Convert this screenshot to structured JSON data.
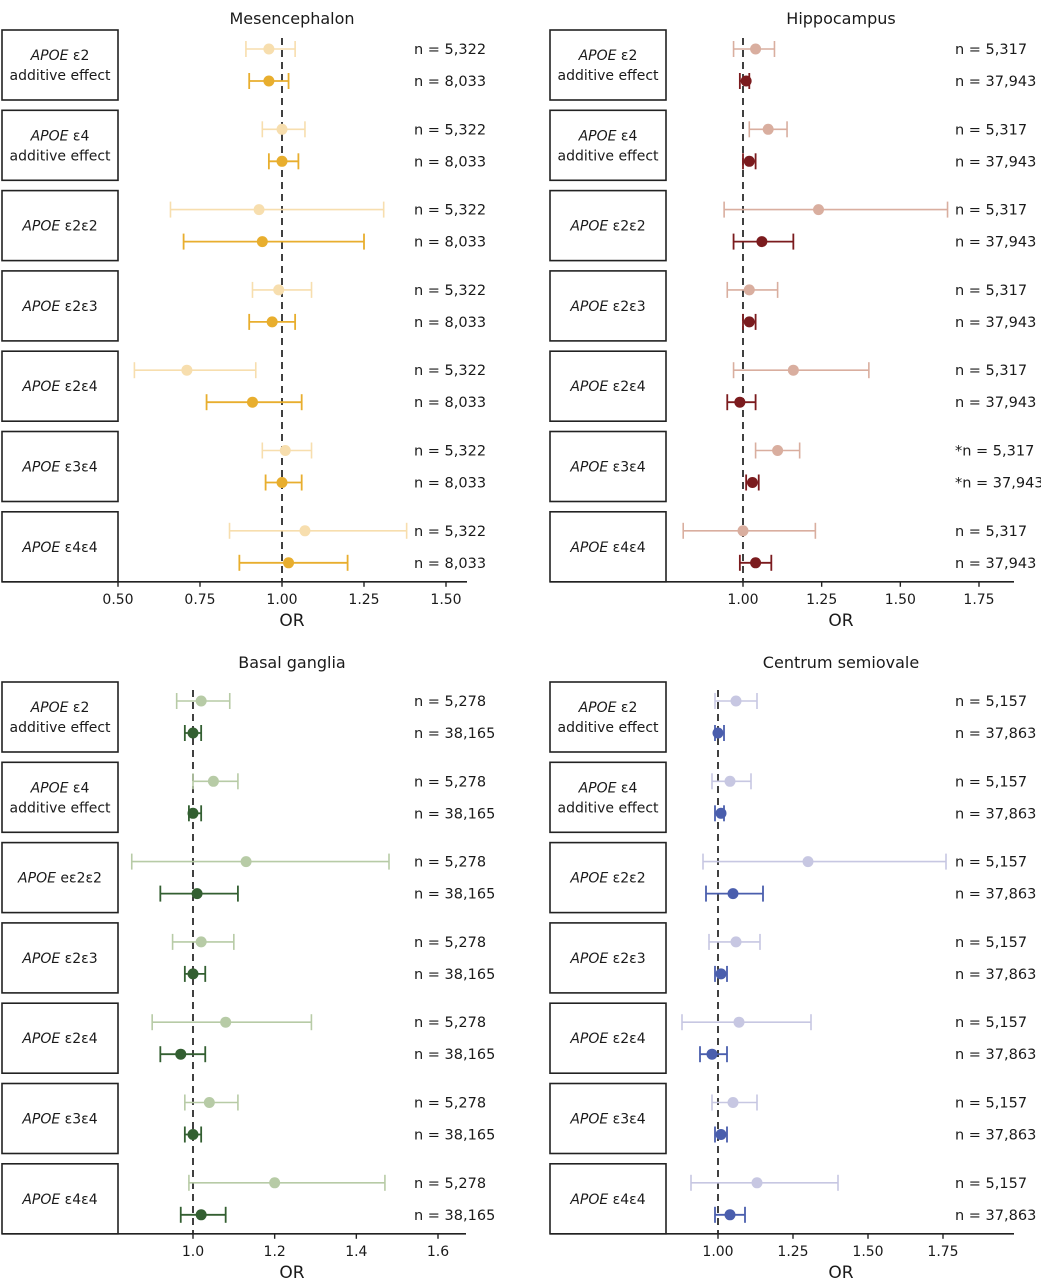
{
  "figure": {
    "xlabel": "OR"
  },
  "chart_data": [
    {
      "type": "forest",
      "title": "Mesencephalon",
      "xlabel": "OR",
      "xlim": [
        0.5,
        1.56
      ],
      "ticks": [
        0.5,
        0.75,
        1.0,
        1.25,
        1.5
      ],
      "tick_labels": [
        "0.50",
        "0.75",
        "1.00",
        "1.25",
        "1.50"
      ],
      "reference_line": 1.0,
      "colors": {
        "light": "#F7DEAE",
        "dark": "#E8AE2E"
      },
      "rows": [
        {
          "label_italic": "APOE",
          "label_rest": " ε2",
          "label_line2": "additive effect",
          "light": {
            "n": "n = 5,322",
            "or": 0.96,
            "lo": 0.89,
            "hi": 1.04
          },
          "dark": {
            "n": "n = 8,033",
            "or": 0.96,
            "lo": 0.9,
            "hi": 1.02
          }
        },
        {
          "label_italic": "APOE",
          "label_rest": " ε4",
          "label_line2": "additive effect",
          "light": {
            "n": "n = 5,322",
            "or": 1.0,
            "lo": 0.94,
            "hi": 1.07
          },
          "dark": {
            "n": "n = 8,033",
            "or": 1.0,
            "lo": 0.96,
            "hi": 1.05
          }
        },
        {
          "label_italic": "APOE",
          "label_rest": " ε2ε2",
          "label_line2": "",
          "light": {
            "n": "n = 5,322",
            "or": 0.93,
            "lo": 0.66,
            "hi": 1.31
          },
          "dark": {
            "n": "n = 8,033",
            "or": 0.94,
            "lo": 0.7,
            "hi": 1.25
          }
        },
        {
          "label_italic": "APOE",
          "label_rest": " ε2ε3",
          "label_line2": "",
          "light": {
            "n": "n = 5,322",
            "or": 0.99,
            "lo": 0.91,
            "hi": 1.09
          },
          "dark": {
            "n": "n = 8,033",
            "or": 0.97,
            "lo": 0.9,
            "hi": 1.04
          }
        },
        {
          "label_italic": "APOE",
          "label_rest": " ε2ε4",
          "label_line2": "",
          "light": {
            "n": "n = 5,322",
            "or": 0.71,
            "lo": 0.55,
            "hi": 0.92
          },
          "dark": {
            "n": "n = 8,033",
            "or": 0.91,
            "lo": 0.77,
            "hi": 1.06
          }
        },
        {
          "label_italic": "APOE",
          "label_rest": " ε3ε4",
          "label_line2": "",
          "light": {
            "n": "n = 5,322",
            "or": 1.01,
            "lo": 0.94,
            "hi": 1.09
          },
          "dark": {
            "n": "n = 8,033",
            "or": 1.0,
            "lo": 0.95,
            "hi": 1.06
          }
        },
        {
          "label_italic": "APOE",
          "label_rest": " ε4ε4",
          "label_line2": "",
          "light": {
            "n": "n = 5,322",
            "or": 1.07,
            "lo": 0.84,
            "hi": 1.38
          },
          "dark": {
            "n": "n = 8,033",
            "or": 1.02,
            "lo": 0.87,
            "hi": 1.2
          }
        }
      ]
    },
    {
      "type": "forest",
      "title": "Hippocampus",
      "xlabel": "OR",
      "xlim": [
        0.39,
        1.86
      ],
      "ticks": [
        1.0,
        1.25,
        1.5,
        1.75
      ],
      "tick_labels": [
        "1.00",
        "1.25",
        "1.50",
        "1.75"
      ],
      "reference_line": 1.0,
      "colors": {
        "light": "#D9AE9F",
        "dark": "#7B1B1E"
      },
      "rows": [
        {
          "label_italic": "APOE",
          "label_rest": " ε2",
          "label_line2": "additive effect",
          "light": {
            "n": "n = 5,317",
            "or": 1.04,
            "lo": 0.97,
            "hi": 1.1
          },
          "dark": {
            "n": "n = 37,943",
            "or": 1.01,
            "lo": 0.99,
            "hi": 1.02
          }
        },
        {
          "label_italic": "APOE",
          "label_rest": " ε4",
          "label_line2": "additive effect",
          "light": {
            "n": "n = 5,317",
            "or": 1.08,
            "lo": 1.02,
            "hi": 1.14
          },
          "dark": {
            "n": "n = 37,943",
            "or": 1.02,
            "lo": 1.0,
            "hi": 1.04
          }
        },
        {
          "label_italic": "APOE",
          "label_rest": " ε2ε2",
          "label_line2": "",
          "light": {
            "n": "n = 5,317",
            "or": 1.24,
            "lo": 0.94,
            "hi": 1.65
          },
          "dark": {
            "n": "n = 37,943",
            "or": 1.06,
            "lo": 0.97,
            "hi": 1.16
          }
        },
        {
          "label_italic": "APOE",
          "label_rest": " ε2ε3",
          "label_line2": "",
          "light": {
            "n": "n = 5,317",
            "or": 1.02,
            "lo": 0.95,
            "hi": 1.11
          },
          "dark": {
            "n": "n = 37,943",
            "or": 1.02,
            "lo": 1.0,
            "hi": 1.04
          }
        },
        {
          "label_italic": "APOE",
          "label_rest": " ε2ε4",
          "label_line2": "",
          "light": {
            "n": "n = 5,317",
            "or": 1.16,
            "lo": 0.97,
            "hi": 1.4
          },
          "dark": {
            "n": "n = 37,943",
            "or": 0.99,
            "lo": 0.95,
            "hi": 1.04
          }
        },
        {
          "label_italic": "APOE",
          "label_rest": " ε3ε4",
          "label_line2": "",
          "light": {
            "n": "*n = 5,317",
            "or": 1.11,
            "lo": 1.04,
            "hi": 1.18
          },
          "dark": {
            "n": "*n = 37,943",
            "or": 1.03,
            "lo": 1.01,
            "hi": 1.05
          }
        },
        {
          "label_italic": "APOE",
          "label_rest": " ε4ε4",
          "label_line2": "",
          "light": {
            "n": "n = 5,317",
            "or": 1.0,
            "lo": 0.81,
            "hi": 1.23
          },
          "dark": {
            "n": "n = 37,943",
            "or": 1.04,
            "lo": 0.99,
            "hi": 1.09
          }
        }
      ]
    },
    {
      "type": "forest",
      "title": "Basal ganglia",
      "xlabel": "OR",
      "xlim": [
        0.53,
        1.67
      ],
      "ticks": [
        1.0,
        1.2,
        1.4,
        1.6
      ],
      "tick_labels": [
        "1.0",
        "1.2",
        "1.4",
        "1.6"
      ],
      "reference_line": 1.0,
      "colors": {
        "light": "#B7CBA6",
        "dark": "#335F31"
      },
      "rows": [
        {
          "label_italic": "APOE",
          "label_rest": " ε2",
          "label_line2": "additive effect",
          "light": {
            "n": "n = 5,278",
            "or": 1.02,
            "lo": 0.96,
            "hi": 1.09
          },
          "dark": {
            "n": "n = 38,165",
            "or": 1.0,
            "lo": 0.98,
            "hi": 1.02
          }
        },
        {
          "label_italic": "APOE",
          "label_rest": " ε4",
          "label_line2": "additive effect",
          "light": {
            "n": "n = 5,278",
            "or": 1.05,
            "lo": 1.0,
            "hi": 1.11
          },
          "dark": {
            "n": "n = 38,165",
            "or": 1.0,
            "lo": 0.99,
            "hi": 1.02
          }
        },
        {
          "label_italic": "APOE",
          "label_rest": " eε2ε2",
          "label_line2": "",
          "light": {
            "n": "n = 5,278",
            "or": 1.13,
            "lo": 0.85,
            "hi": 1.48
          },
          "dark": {
            "n": "n = 38,165",
            "or": 1.01,
            "lo": 0.92,
            "hi": 1.11
          }
        },
        {
          "label_italic": "APOE",
          "label_rest": " ε2ε3",
          "label_line2": "",
          "light": {
            "n": "n = 5,278",
            "or": 1.02,
            "lo": 0.95,
            "hi": 1.1
          },
          "dark": {
            "n": "n = 38,165",
            "or": 1.0,
            "lo": 0.98,
            "hi": 1.03
          }
        },
        {
          "label_italic": "APOE",
          "label_rest": " ε2ε4",
          "label_line2": "",
          "light": {
            "n": "n = 5,278",
            "or": 1.08,
            "lo": 0.9,
            "hi": 1.29
          },
          "dark": {
            "n": "n = 38,165",
            "or": 0.97,
            "lo": 0.92,
            "hi": 1.03
          }
        },
        {
          "label_italic": "APOE",
          "label_rest": " ε3ε4",
          "label_line2": "",
          "light": {
            "n": "n = 5,278",
            "or": 1.04,
            "lo": 0.98,
            "hi": 1.11
          },
          "dark": {
            "n": "n = 38,165",
            "or": 1.0,
            "lo": 0.98,
            "hi": 1.02
          }
        },
        {
          "label_italic": "APOE",
          "label_rest": " ε4ε4",
          "label_line2": "",
          "light": {
            "n": "n = 5,278",
            "or": 1.2,
            "lo": 0.99,
            "hi": 1.47
          },
          "dark": {
            "n": "n = 38,165",
            "or": 1.02,
            "lo": 0.97,
            "hi": 1.08
          }
        }
      ]
    },
    {
      "type": "forest",
      "title": "Centrum semiovale",
      "xlabel": "OR",
      "xlim": [
        0.44,
        1.99
      ],
      "ticks": [
        1.0,
        1.25,
        1.5,
        1.75
      ],
      "tick_labels": [
        "1.00",
        "1.25",
        "1.50",
        "1.75"
      ],
      "reference_line": 1.0,
      "colors": {
        "light": "#C7C7E2",
        "dark": "#4A5EAD"
      },
      "rows": [
        {
          "label_italic": "APOE",
          "label_rest": " ε2",
          "label_line2": "additive effect",
          "light": {
            "n": "n = 5,157",
            "or": 1.06,
            "lo": 0.99,
            "hi": 1.13
          },
          "dark": {
            "n": "n = 37,863",
            "or": 1.0,
            "lo": 0.99,
            "hi": 1.02
          }
        },
        {
          "label_italic": "APOE",
          "label_rest": " ε4",
          "label_line2": "additive effect",
          "light": {
            "n": "n = 5,157",
            "or": 1.04,
            "lo": 0.98,
            "hi": 1.11
          },
          "dark": {
            "n": "n = 37,863",
            "or": 1.01,
            "lo": 0.99,
            "hi": 1.02
          }
        },
        {
          "label_italic": "APOE",
          "label_rest": " ε2ε2",
          "label_line2": "",
          "light": {
            "n": "n = 5,157",
            "or": 1.3,
            "lo": 0.95,
            "hi": 1.76
          },
          "dark": {
            "n": "n = 37,863",
            "or": 1.05,
            "lo": 0.96,
            "hi": 1.15
          }
        },
        {
          "label_italic": "APOE",
          "label_rest": " ε2ε3",
          "label_line2": "",
          "light": {
            "n": "n = 5,157",
            "or": 1.06,
            "lo": 0.97,
            "hi": 1.14
          },
          "dark": {
            "n": "n = 37,863",
            "or": 1.01,
            "lo": 0.99,
            "hi": 1.03
          }
        },
        {
          "label_italic": "APOE",
          "label_rest": " ε2ε4",
          "label_line2": "",
          "light": {
            "n": "n = 5,157",
            "or": 1.07,
            "lo": 0.88,
            "hi": 1.31
          },
          "dark": {
            "n": "n = 37,863",
            "or": 0.98,
            "lo": 0.94,
            "hi": 1.03
          }
        },
        {
          "label_italic": "APOE",
          "label_rest": " ε3ε4",
          "label_line2": "",
          "light": {
            "n": "n = 5,157",
            "or": 1.05,
            "lo": 0.98,
            "hi": 1.13
          },
          "dark": {
            "n": "n = 37,863",
            "or": 1.01,
            "lo": 0.99,
            "hi": 1.03
          }
        },
        {
          "label_italic": "APOE",
          "label_rest": " ε4ε4",
          "label_line2": "",
          "light": {
            "n": "n = 5,157",
            "or": 1.13,
            "lo": 0.91,
            "hi": 1.4
          },
          "dark": {
            "n": "n = 37,863",
            "or": 1.04,
            "lo": 0.99,
            "hi": 1.09
          }
        }
      ]
    }
  ]
}
